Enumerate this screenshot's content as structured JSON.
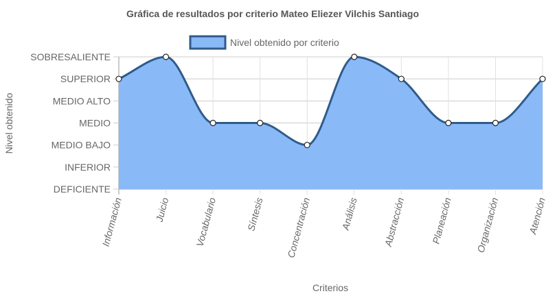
{
  "chart_data": {
    "type": "area",
    "title": "Gráfica de resultados por criterio Mateo Eliezer Vilchis Santiago",
    "xlabel": "Criterios",
    "ylabel": "Nivel obtenido",
    "y_levels": [
      "DEFICIENTE",
      "INFERIOR",
      "MEDIO BAJO",
      "MEDIO",
      "MEDIO ALTO",
      "SUPERIOR",
      "SOBRESALIENTE"
    ],
    "ylim": [
      0,
      6
    ],
    "categories": [
      "Información",
      "Juicio",
      "Vocabulario",
      "Síntesis",
      "Concentración",
      "Análisis",
      "Abstracción",
      "Planeación",
      "Organización",
      "Atención"
    ],
    "series": [
      {
        "name": "Nivel obtenido por criterio",
        "values": [
          5,
          6,
          3,
          3,
          2,
          6,
          5,
          3,
          3,
          5
        ],
        "fill_color": "#8ab9f7",
        "line_color": "#2f5b8a"
      }
    ],
    "grid": true,
    "legend_position": "top"
  }
}
